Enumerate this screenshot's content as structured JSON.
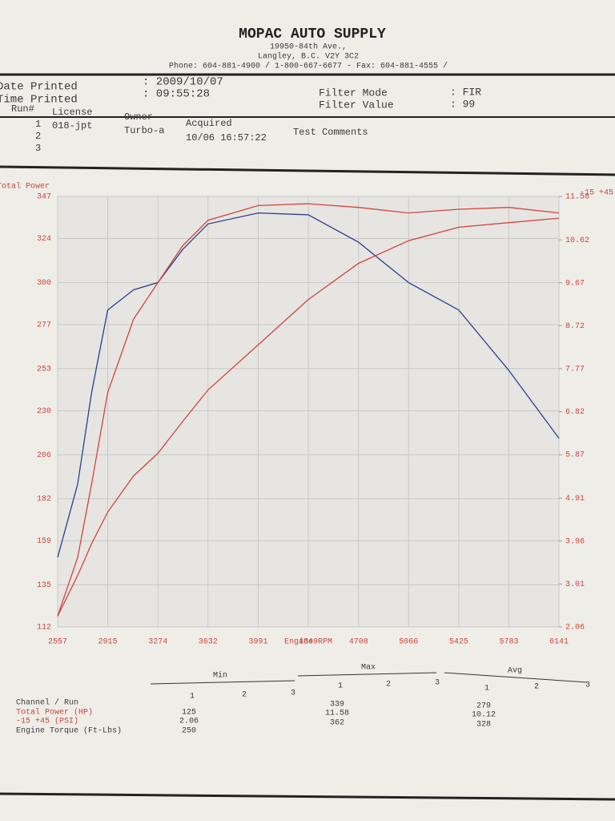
{
  "header": {
    "title": "MOPAC AUTO SUPPLY",
    "address": "19950-84th Ave.,",
    "city": "Langley, B.C.  V2Y 3C2",
    "phone": "Phone: 604-881-4900 / 1-800-667-6677 - Fax: 604-881-4555 /"
  },
  "info": {
    "date_label": "Date Printed",
    "date_value": ": 2009/10/07",
    "time_label": "Time Printed",
    "time_value": ": 09:55:28",
    "filter_mode_label": "Filter Mode",
    "filter_mode_value": ": FIR",
    "filter_value_label": "Filter Value",
    "filter_value_value": ": 99"
  },
  "runs": {
    "headers": [
      "Run#",
      "License",
      "Owner",
      "Acquired",
      "Test Comments"
    ],
    "rows": [
      [
        "1",
        "018-jpt",
        "Turbo-a",
        "10/06 16:57:22"
      ],
      [
        "2"
      ],
      [
        "3"
      ]
    ]
  },
  "chart_data": {
    "type": "line",
    "x_label": "Engine RPM",
    "y_label": "Total Power",
    "y2_label": "-15 +45",
    "x": [
      2557,
      2700,
      2800,
      2915,
      3100,
      3274,
      3450,
      3632,
      3991,
      4349,
      4708,
      5066,
      5425,
      5783,
      6141
    ],
    "series": [
      {
        "name": "Total Power (HP)",
        "color": "#2d3f8e",
        "values": [
          150,
          190,
          240,
          285,
          296,
          300,
          318,
          332,
          338,
          337,
          322,
          300,
          285,
          252,
          215
        ]
      },
      {
        "name": "-15 +45 (PSI)",
        "color": "#d2453c",
        "axis": "y2",
        "values": [
          2.3,
          3.2,
          3.9,
          4.6,
          5.4,
          5.9,
          6.6,
          7.3,
          8.3,
          9.3,
          10.1,
          10.6,
          10.9,
          11.0,
          11.1
        ]
      },
      {
        "name": "Engine Torque (Ft-Lbs)",
        "color": "#d2453c",
        "values": [
          118,
          150,
          190,
          240,
          280,
          300,
          320,
          334,
          342,
          343,
          341,
          338,
          340,
          341,
          338
        ]
      }
    ],
    "xlim": [
      2557,
      6141
    ],
    "xticks": [
      2557,
      2915,
      3274,
      3632,
      3991,
      4349,
      4708,
      5066,
      5425,
      5783,
      6141
    ],
    "ylim": [
      112,
      347
    ],
    "yticks": [
      112,
      135,
      159,
      182,
      206,
      230,
      253,
      277,
      300,
      324,
      347
    ],
    "y2lim": [
      2.06,
      11.58
    ],
    "y2ticks": [
      2.06,
      3.01,
      3.96,
      4.91,
      5.87,
      6.82,
      7.77,
      8.72,
      9.67,
      10.62,
      11.58
    ],
    "grid": true
  },
  "stats": {
    "groups": [
      "Min",
      "Max",
      "Avg"
    ],
    "runs": [
      "1",
      "2",
      "3"
    ],
    "row_header": "Channel / Run",
    "min": [
      125,
      2.06,
      250
    ],
    "max": [
      339,
      11.58,
      362
    ],
    "avg": [
      279,
      10.12,
      328
    ]
  }
}
